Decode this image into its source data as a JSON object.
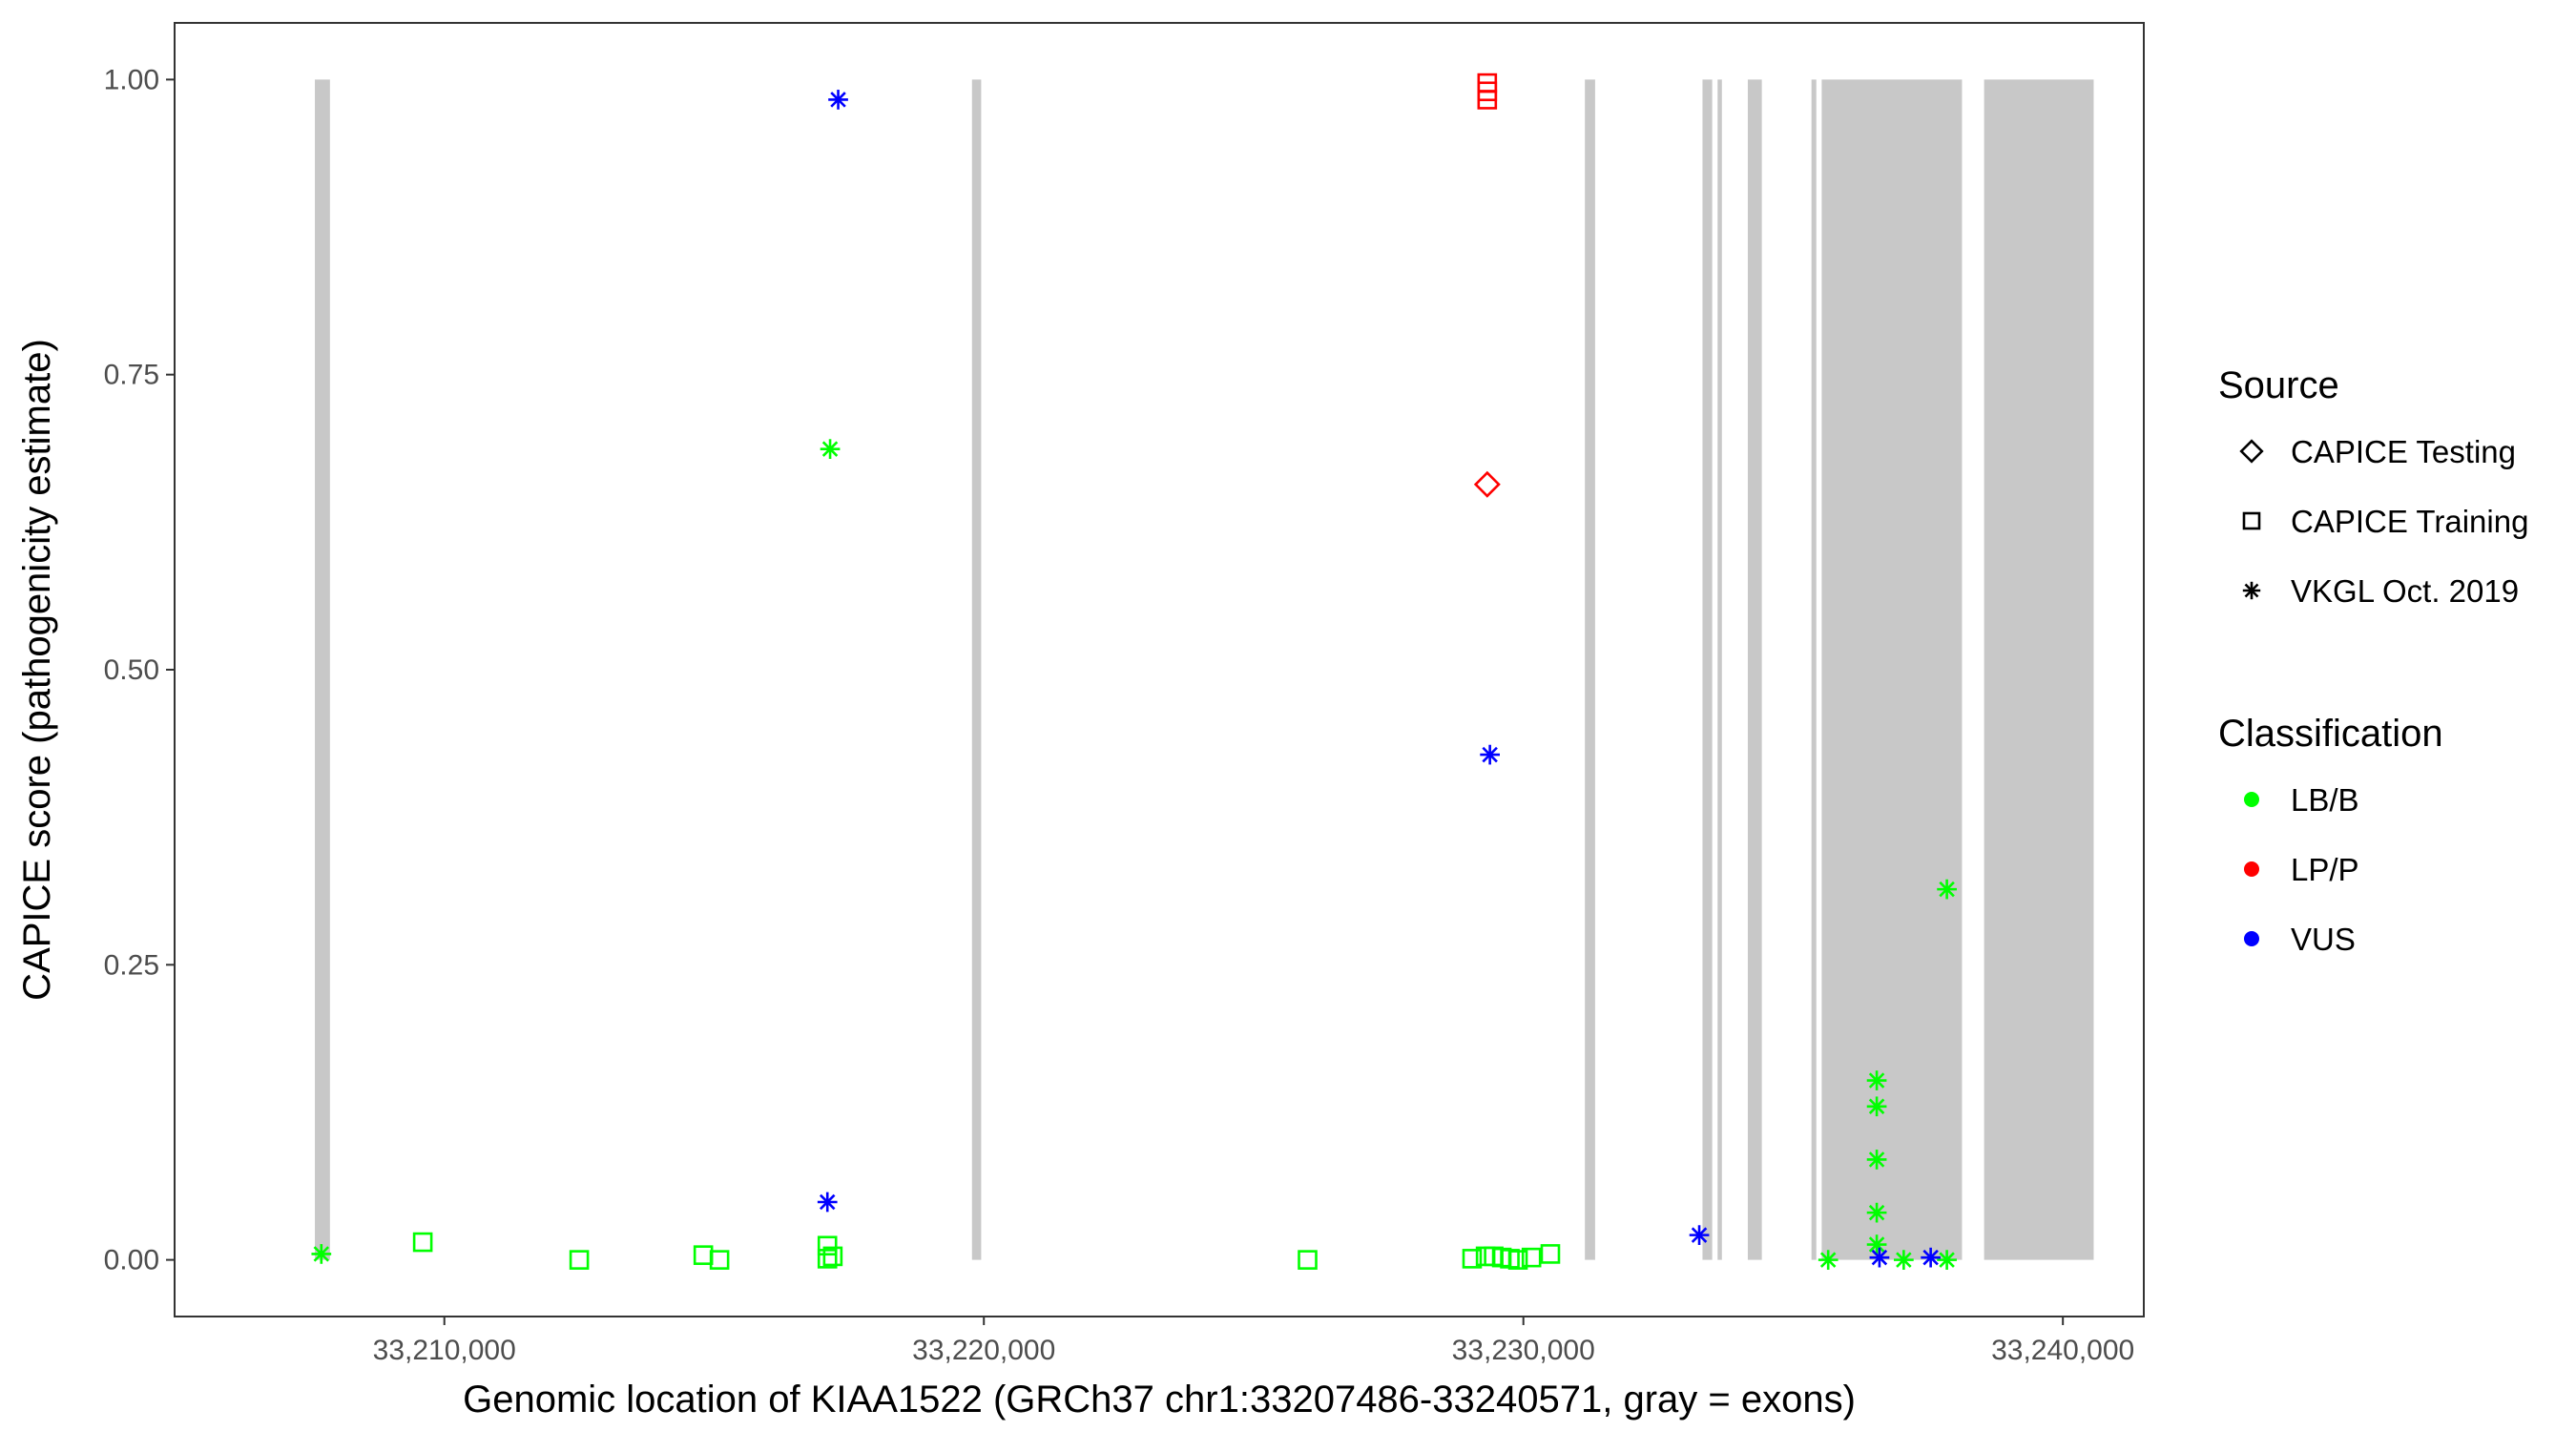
{
  "chart_data": {
    "type": "scatter",
    "title": "",
    "xlabel": "Genomic location of KIAA1522 (GRCh37 chr1:33207486-33240571, gray = exons)",
    "ylabel": "CAPICE score (pathogenicity estimate)",
    "xlim": [
      33205000,
      33241500
    ],
    "ylim": [
      -0.048,
      1.048
    ],
    "x_ticks": [
      33210000,
      33220000,
      33230000,
      33240000
    ],
    "x_tick_labels": [
      "33,210,000",
      "33,220,000",
      "33,230,000",
      "33,240,000"
    ],
    "y_ticks": [
      0.0,
      0.25,
      0.5,
      0.75,
      1.0
    ],
    "y_tick_labels": [
      "0.00",
      "0.25",
      "0.50",
      "0.75",
      "1.00"
    ],
    "grid": false,
    "exon_color": "#c8c8c8",
    "exons": [
      [
        33207600,
        33207880
      ],
      [
        33219780,
        33219950
      ],
      [
        33231140,
        33231330
      ],
      [
        33233320,
        33233500
      ],
      [
        33233600,
        33233680
      ],
      [
        33234160,
        33234420
      ],
      [
        33235340,
        33235430
      ],
      [
        33235530,
        33238130
      ],
      [
        33238540,
        33240571
      ]
    ],
    "legends": [
      {
        "title": "Source",
        "items": [
          {
            "label": "CAPICE Testing",
            "shape": "diamond"
          },
          {
            "label": "CAPICE Training",
            "shape": "square"
          },
          {
            "label": "VKGL Oct. 2019",
            "shape": "asterisk"
          }
        ]
      },
      {
        "title": "Classification",
        "items": [
          {
            "label": "LB/B",
            "color": "#00ff00"
          },
          {
            "label": "LP/P",
            "color": "#ff0000"
          },
          {
            "label": "VUS",
            "color": "#0000ff"
          }
        ]
      }
    ],
    "series": [
      {
        "source": "CAPICE Training",
        "shape": "square",
        "classification": "LB/B",
        "color": "#00ff00",
        "points": [
          [
            33209600,
            0.015
          ],
          [
            33212500,
            0.0
          ],
          [
            33214800,
            0.004
          ],
          [
            33215100,
            0.0
          ],
          [
            33217100,
            0.012
          ],
          [
            33217100,
            0.001
          ],
          [
            33217200,
            0.003
          ],
          [
            33226000,
            0.0
          ],
          [
            33229050,
            0.001
          ],
          [
            33229300,
            0.003
          ],
          [
            33229450,
            0.003
          ],
          [
            33229600,
            0.002
          ],
          [
            33229750,
            0.001
          ],
          [
            33229900,
            0.0
          ],
          [
            33230150,
            0.002
          ],
          [
            33230500,
            0.005
          ]
        ]
      },
      {
        "source": "CAPICE Training",
        "shape": "square",
        "classification": "LP/P",
        "color": "#ff0000",
        "points": [
          [
            33229330,
            0.997
          ],
          [
            33229330,
            0.99
          ],
          [
            33229330,
            0.983
          ]
        ]
      },
      {
        "source": "CAPICE Testing",
        "shape": "diamond",
        "classification": "LP/P",
        "color": "#ff0000",
        "points": [
          [
            33229330,
            0.657
          ]
        ]
      },
      {
        "source": "VKGL Oct. 2019",
        "shape": "asterisk",
        "classification": "LB/B",
        "color": "#00ff00",
        "points": [
          [
            33207720,
            0.005
          ],
          [
            33217150,
            0.687
          ],
          [
            33235650,
            0.0
          ],
          [
            33236550,
            0.152
          ],
          [
            33236550,
            0.13
          ],
          [
            33236550,
            0.085
          ],
          [
            33236550,
            0.04
          ],
          [
            33236550,
            0.013
          ],
          [
            33237050,
            0.0
          ],
          [
            33237850,
            0.314
          ],
          [
            33237850,
            0.0
          ]
        ]
      },
      {
        "source": "VKGL Oct. 2019",
        "shape": "asterisk",
        "classification": "VUS",
        "color": "#0000ff",
        "points": [
          [
            33217300,
            0.983
          ],
          [
            33217100,
            0.049
          ],
          [
            33229380,
            0.428
          ],
          [
            33233260,
            0.021
          ],
          [
            33236600,
            0.002
          ],
          [
            33237550,
            0.002
          ]
        ]
      }
    ]
  }
}
